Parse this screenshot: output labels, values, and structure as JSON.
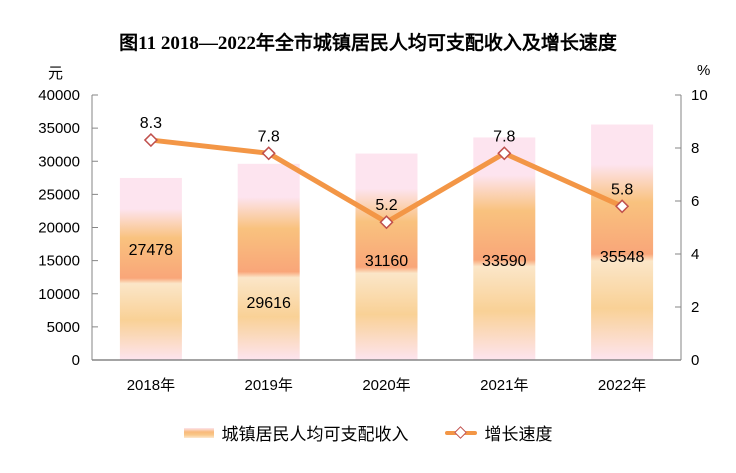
{
  "title": "图11  2018—2022年全市城镇居民人均可支配收入及增长速度",
  "left_unit": "元",
  "right_unit": "%",
  "legend": {
    "bar_label": "城镇居民人均可支配收入",
    "line_label": "增长速度"
  },
  "colors": {
    "line": "#f39646",
    "marker_border": "#c0504d",
    "bar_top": "#fde4ef",
    "bar_mid": "#f9a679",
    "bar_light": "#fbe3c0",
    "axis": "#868686"
  },
  "chart_data": {
    "type": "bar+line",
    "title": "图11  2018—2022年全市城镇居民人均可支配收入及增长速度",
    "categories": [
      "2018年",
      "2019年",
      "2020年",
      "2021年",
      "2022年"
    ],
    "series": [
      {
        "name": "城镇居民人均可支配收入",
        "type": "bar",
        "axis": "left",
        "values": [
          27478,
          29616,
          31160,
          33590,
          35548
        ]
      },
      {
        "name": "增长速度",
        "type": "line",
        "axis": "right",
        "values": [
          8.3,
          7.8,
          5.2,
          7.8,
          5.8
        ]
      }
    ],
    "bar_labels": [
      "27478",
      "29616",
      "31160",
      "33590",
      "35548"
    ],
    "line_labels": [
      "8.3",
      "7.8",
      "5.2",
      "7.8",
      "5.8"
    ],
    "ylabel_left": "元",
    "ylabel_right": "%",
    "ylim_left": [
      0,
      40000
    ],
    "ylim_right": [
      0,
      10
    ],
    "yticks_left": [
      "0",
      "5000",
      "10000",
      "15000",
      "20000",
      "25000",
      "30000",
      "35000",
      "40000"
    ],
    "yticks_right": [
      "0",
      "2",
      "4",
      "6",
      "8",
      "10"
    ],
    "grid": false,
    "legend_position": "bottom"
  }
}
